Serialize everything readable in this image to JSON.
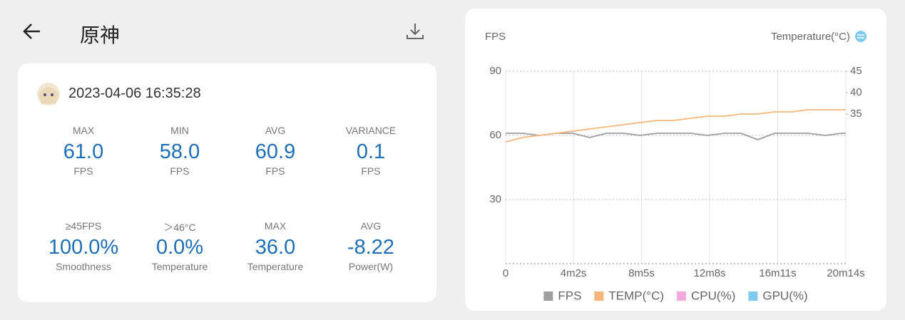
{
  "header": {
    "title": "原神"
  },
  "session": {
    "timestamp": "2023-04-06 16:35:28"
  },
  "stats": [
    {
      "label": "MAX",
      "value": "61.0",
      "unit": "FPS"
    },
    {
      "label": "MIN",
      "value": "58.0",
      "unit": "FPS"
    },
    {
      "label": "AVG",
      "value": "60.9",
      "unit": "FPS"
    },
    {
      "label": "VARIANCE",
      "value": "0.1",
      "unit": "FPS"
    },
    {
      "label": "≥45FPS",
      "value": "100.0%",
      "unit": "Smoothness"
    },
    {
      "label": "＞46°C",
      "value": "0.0%",
      "unit": "Temperature"
    },
    {
      "label": "MAX",
      "value": "36.0",
      "unit": "Temperature"
    },
    {
      "label": "AVG",
      "value": "-8.22",
      "unit": "Power(W)"
    }
  ],
  "chart_data": {
    "type": "line",
    "ylabel": "FPS",
    "y2label": "Temperature(°C)",
    "grid": true,
    "xlim": [
      0,
      1214
    ],
    "xticks": [
      0,
      {
        "value": 242,
        "label": "4m2s"
      },
      {
        "value": 485,
        "label": "8m5s"
      },
      {
        "value": 728,
        "label": "12m8s"
      },
      {
        "value": 971,
        "label": "16m11s"
      },
      {
        "value": 1214,
        "label": "20m14s"
      }
    ],
    "ylim": [
      0,
      90
    ],
    "yticks": [
      30,
      60,
      90
    ],
    "y2lim": [
      0,
      45
    ],
    "y2ticks": [
      35,
      40,
      45
    ],
    "x": [
      0,
      60,
      120,
      180,
      240,
      300,
      360,
      420,
      480,
      540,
      600,
      660,
      720,
      780,
      840,
      900,
      960,
      1020,
      1080,
      1140,
      1200,
      1214
    ],
    "series": [
      {
        "name": "FPS",
        "color": "#9e9e9e",
        "values": [
          61,
          61,
          60,
          61,
          61,
          59,
          61,
          61,
          60,
          61,
          61,
          61,
          60,
          61,
          61,
          58,
          61,
          61,
          61,
          60,
          61,
          61
        ]
      },
      {
        "name": "TEMP(°C)",
        "color": "#f4b67c",
        "axis": "y2",
        "values": [
          28.5,
          29.5,
          30,
          30.5,
          31,
          31.5,
          32,
          32.5,
          33,
          33.5,
          33.5,
          34,
          34.5,
          34.5,
          35,
          35,
          35.5,
          35.5,
          36,
          36,
          36,
          36
        ]
      },
      {
        "name": "CPU(%)",
        "color": "#f5a9dc",
        "values": [
          null,
          null,
          null,
          null,
          null,
          null,
          null,
          null,
          null,
          null,
          null,
          null,
          null,
          null,
          null,
          null,
          null,
          null,
          null,
          null,
          null,
          null
        ]
      },
      {
        "name": "GPU(%)",
        "color": "#7ecbef",
        "values": [
          null,
          null,
          null,
          null,
          null,
          null,
          null,
          null,
          null,
          null,
          null,
          null,
          null,
          null,
          null,
          null,
          null,
          null,
          null,
          null,
          null,
          null
        ]
      }
    ]
  }
}
